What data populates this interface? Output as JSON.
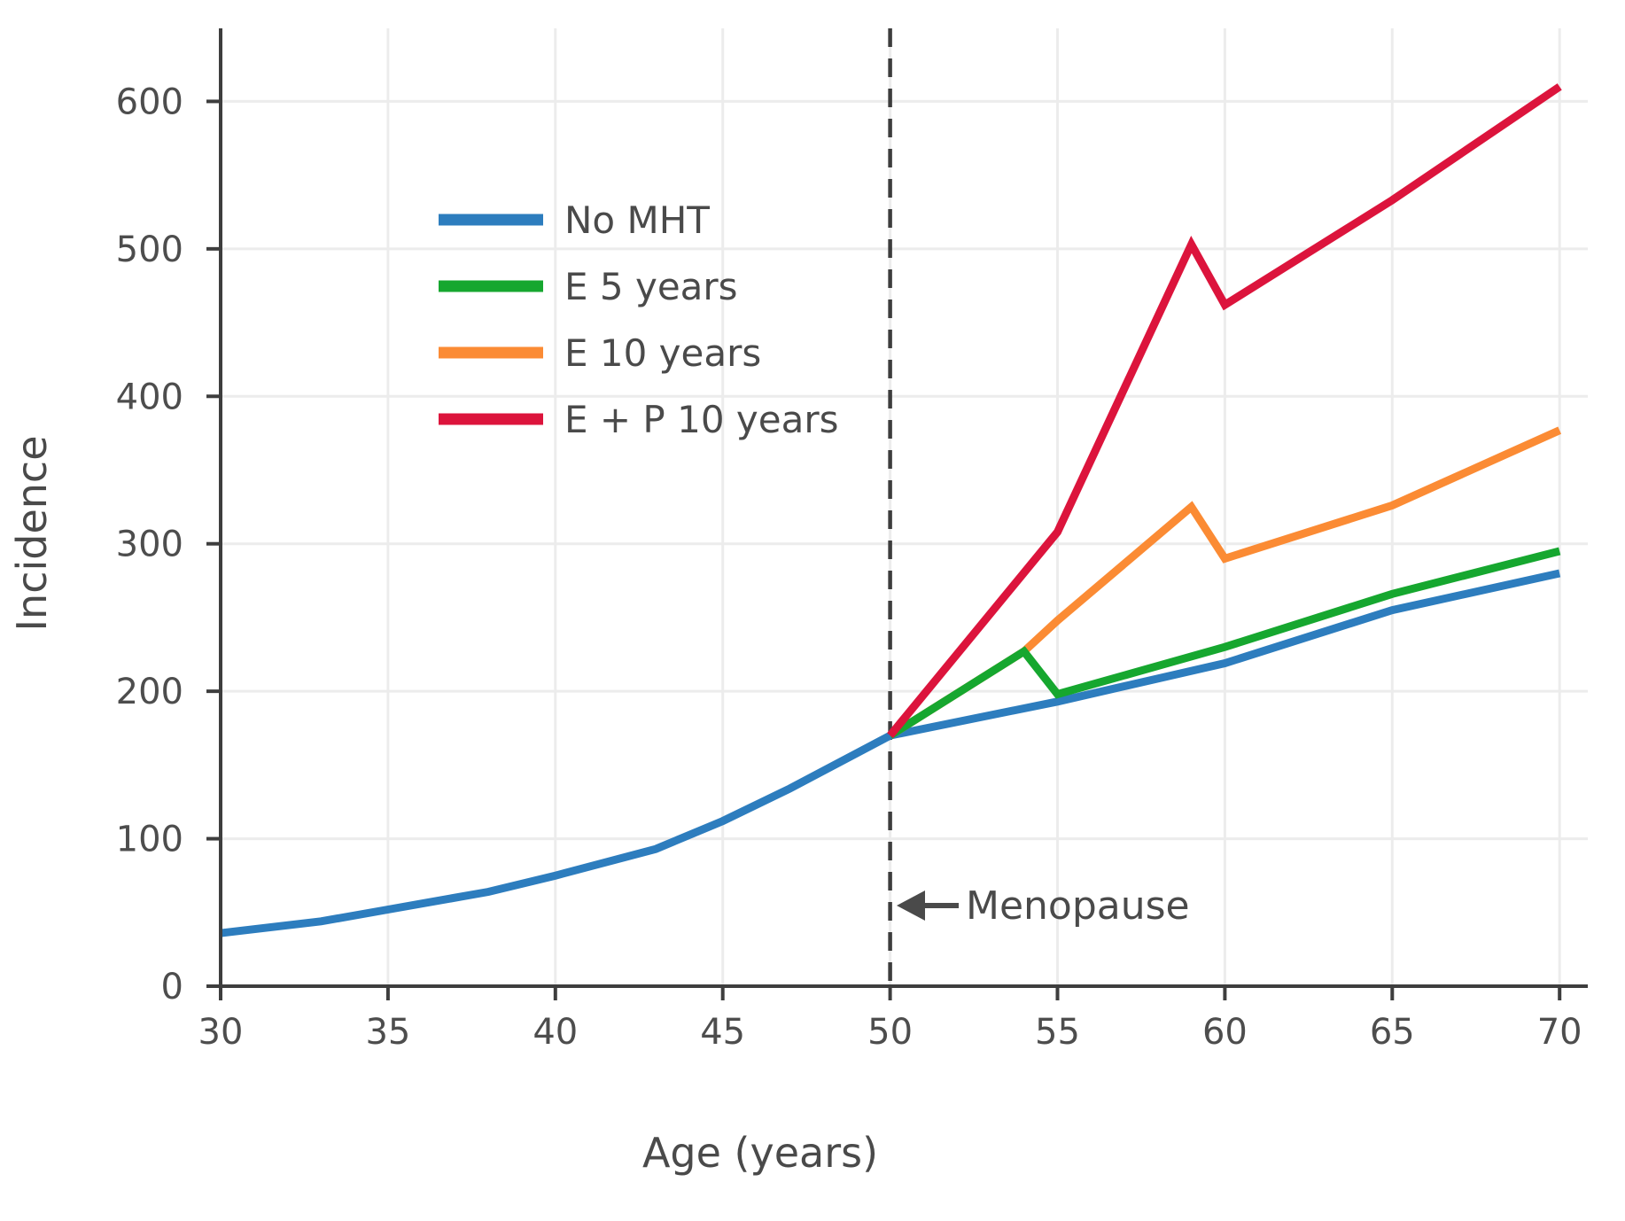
{
  "styles": {
    "background": "#FFFFFF",
    "grid": "#ECECEC",
    "axis": "#3E3E3E",
    "tick_text": "#4D4D4D",
    "label_text": "#4A4A4A",
    "vline": "#3D3D3D"
  },
  "chart_data": {
    "type": "line",
    "title": "",
    "xlabel": "Age (years)",
    "ylabel": "Incidence",
    "xlim": [
      30,
      70
    ],
    "ylim": [
      0,
      655
    ],
    "x_ticks": [
      30,
      35,
      40,
      45,
      50,
      55,
      60,
      65,
      70
    ],
    "y_ticks": [
      0,
      100,
      200,
      300,
      400,
      500,
      600
    ],
    "grid": true,
    "legend_position": "upper-left-inside",
    "vline": {
      "x": 50,
      "style": "dashed",
      "label": "Menopause"
    },
    "series": [
      {
        "name": "No MHT",
        "color": "#2D7DBE",
        "points": [
          [
            30,
            36
          ],
          [
            33,
            44
          ],
          [
            35,
            52
          ],
          [
            38,
            64
          ],
          [
            40,
            75
          ],
          [
            43,
            93
          ],
          [
            45,
            112
          ],
          [
            47,
            134
          ],
          [
            50,
            170
          ],
          [
            55,
            193
          ],
          [
            60,
            219
          ],
          [
            65,
            255
          ],
          [
            70,
            280
          ]
        ]
      },
      {
        "name": "E 5 years",
        "color": "#16A72F",
        "points": [
          [
            50,
            170
          ],
          [
            54,
            227
          ],
          [
            55,
            198
          ],
          [
            60,
            230
          ],
          [
            65,
            266
          ],
          [
            70,
            295
          ]
        ]
      },
      {
        "name": "E 10 years",
        "color": "#FB8B34",
        "points": [
          [
            50,
            170
          ],
          [
            54,
            227
          ],
          [
            55,
            248
          ],
          [
            59,
            325
          ],
          [
            60,
            290
          ],
          [
            65,
            326
          ],
          [
            70,
            377
          ]
        ]
      },
      {
        "name": "E + P 10 years",
        "color": "#DC143C",
        "points": [
          [
            50,
            170
          ],
          [
            55,
            308
          ],
          [
            59,
            503
          ],
          [
            60,
            462
          ],
          [
            65,
            533
          ],
          [
            70,
            610
          ]
        ]
      }
    ]
  }
}
